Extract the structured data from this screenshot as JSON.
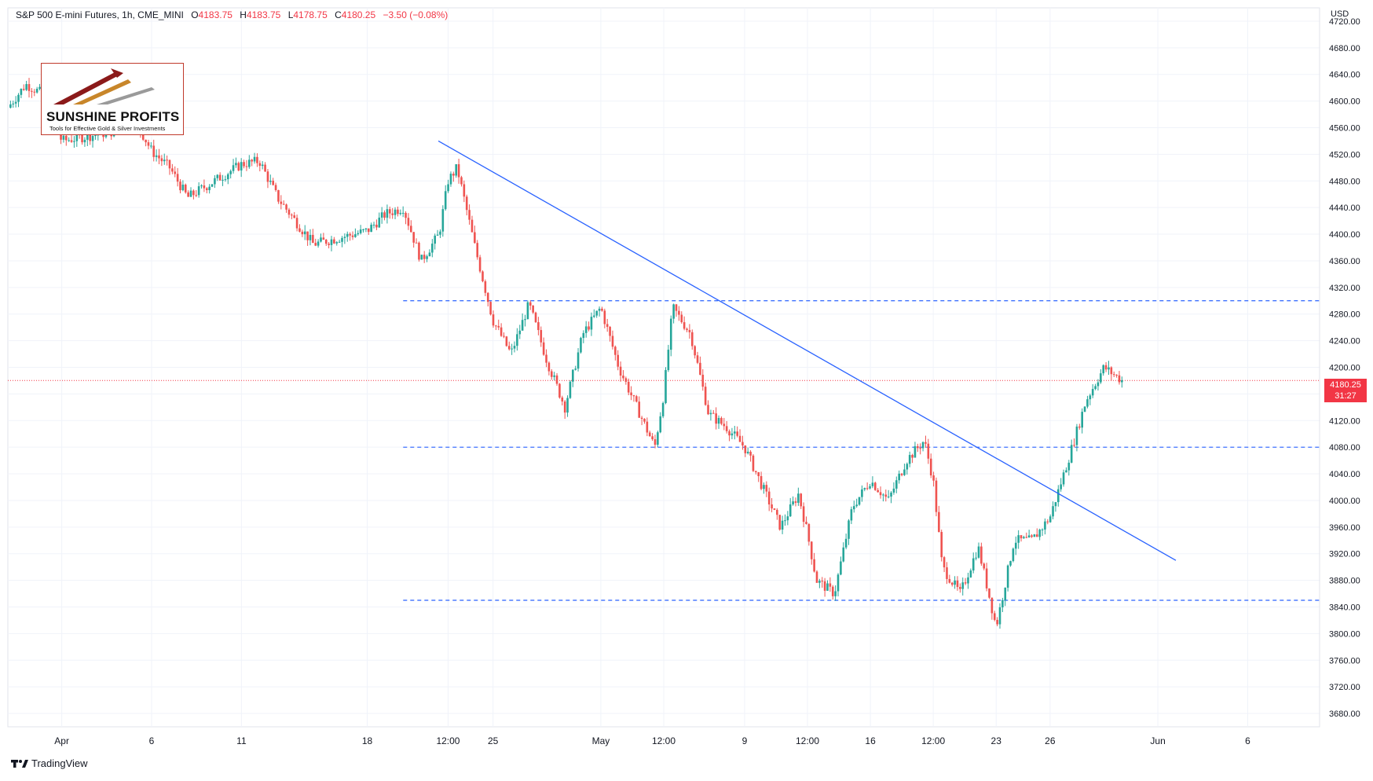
{
  "header": {
    "symbol": "S&P 500 E-mini Futures, 1h, CME_MINI",
    "open_label": "O",
    "open": "4183.75",
    "high_label": "H",
    "high": "4183.75",
    "low_label": "L",
    "low": "4178.75",
    "close_label": "C",
    "close": "4180.25",
    "change": "−3.50 (−0.08%)"
  },
  "currency": "USD",
  "last_price": {
    "value": "4180.25",
    "countdown": "31:27"
  },
  "logo": {
    "name": "SUNSHINE PROFITS",
    "tagline": "Tools for Effective Gold & Silver Investments"
  },
  "branding": {
    "platform": "TradingView",
    "icon": "tradingview-logo-icon"
  },
  "colors": {
    "up": "#26a69a",
    "down": "#ef5350",
    "trendline": "#2962ff",
    "last_price_line": "#f23645",
    "logo_border": "#c0392b"
  },
  "chart_data": {
    "type": "candlestick",
    "title": "S&P 500 E-mini Futures, 1h, CME_MINI",
    "y_unit": "USD",
    "ylim": [
      3660,
      4740
    ],
    "y_ticks": [
      4720,
      4680,
      4640,
      4600,
      4560,
      4520,
      4480,
      4440,
      4400,
      4360,
      4320,
      4280,
      4240,
      4200,
      4160,
      4120,
      4080,
      4040,
      4000,
      3960,
      3920,
      3880,
      3840,
      3800,
      3760,
      3720,
      3680
    ],
    "y_tick_labels": [
      "4720.00",
      "4680.00",
      "4640.00",
      "4600.00",
      "4560.00",
      "4520.00",
      "4480.00",
      "4440.00",
      "4400.00",
      "4360.00",
      "4320.00",
      "4280.00",
      "4240.00",
      "4200.00",
      "4160.00",
      "4120.00",
      "4080.00",
      "4040.00",
      "4000.00",
      "3960.00",
      "3920.00",
      "3880.00",
      "3840.00",
      "3800.00",
      "3760.00",
      "3720.00",
      "3680.00"
    ],
    "x_tick_labels": [
      "Apr",
      "6",
      "11",
      "18",
      "12:00",
      "25",
      "May",
      "12:00",
      "9",
      "12:00",
      "16",
      "12:00",
      "23",
      "26",
      "Jun",
      "6"
    ],
    "x_tick_dates": [
      "2022-04-01",
      "2022-04-06",
      "2022-04-11",
      "2022-04-18",
      "2022-04-22 12:00",
      "2022-04-25",
      "2022-05-01",
      "2022-05-04 12:00",
      "2022-05-09",
      "2022-05-12 12:00",
      "2022-05-16",
      "2022-05-19 12:00",
      "2022-05-23",
      "2022-05-26",
      "2022-06-01",
      "2022-06-06"
    ],
    "x_range": [
      "2022-03-29",
      "2022-06-10"
    ],
    "price_path": [
      [
        "2022-03-29",
        4590
      ],
      [
        "2022-03-30",
        4625
      ],
      [
        "2022-03-31",
        4610
      ],
      [
        "2022-04-01",
        4540
      ],
      [
        "2022-04-04",
        4555
      ],
      [
        "2022-04-05",
        4575
      ],
      [
        "2022-04-06",
        4525
      ],
      [
        "2022-04-07",
        4500
      ],
      [
        "2022-04-08",
        4455
      ],
      [
        "2022-04-11",
        4505
      ],
      [
        "2022-04-12",
        4510
      ],
      [
        "2022-04-13",
        4455
      ],
      [
        "2022-04-14",
        4420
      ],
      [
        "2022-04-15",
        4385
      ],
      [
        "2022-04-18",
        4405
      ],
      [
        "2022-04-19",
        4430
      ],
      [
        "2022-04-20",
        4440
      ],
      [
        "2022-04-21",
        4360
      ],
      [
        "2022-04-22",
        4400
      ],
      [
        "2022-04-22 12:00",
        4480
      ],
      [
        "2022-04-23",
        4500
      ],
      [
        "2022-04-24",
        4380
      ],
      [
        "2022-04-25",
        4270
      ],
      [
        "2022-04-26",
        4220
      ],
      [
        "2022-04-27",
        4295
      ],
      [
        "2022-04-28",
        4210
      ],
      [
        "2022-04-29",
        4140
      ],
      [
        "2022-04-30",
        4250
      ],
      [
        "2022-05-01",
        4290
      ],
      [
        "2022-05-02",
        4200
      ],
      [
        "2022-05-03",
        4140
      ],
      [
        "2022-05-04",
        4080
      ],
      [
        "2022-05-04 12:00",
        4160
      ],
      [
        "2022-05-05",
        4290
      ],
      [
        "2022-05-06",
        4250
      ],
      [
        "2022-05-07",
        4130
      ],
      [
        "2022-05-08",
        4110
      ],
      [
        "2022-05-09",
        4080
      ],
      [
        "2022-05-10",
        4020
      ],
      [
        "2022-05-11",
        3960
      ],
      [
        "2022-05-12",
        4010
      ],
      [
        "2022-05-12 12:00",
        3950
      ],
      [
        "2022-05-13",
        3880
      ],
      [
        "2022-05-14",
        3860
      ],
      [
        "2022-05-15",
        3990
      ],
      [
        "2022-05-16",
        4030
      ],
      [
        "2022-05-17",
        4000
      ],
      [
        "2022-05-18",
        4060
      ],
      [
        "2022-05-19",
        4090
      ],
      [
        "2022-05-19 12:00",
        4030
      ],
      [
        "2022-05-20",
        3900
      ],
      [
        "2022-05-21",
        3860
      ],
      [
        "2022-05-22",
        3930
      ],
      [
        "2022-05-23",
        3810
      ],
      [
        "2022-05-24",
        3940
      ],
      [
        "2022-05-25",
        3940
      ],
      [
        "2022-05-26",
        3975
      ],
      [
        "2022-05-27",
        4060
      ],
      [
        "2022-05-28",
        4150
      ],
      [
        "2022-05-29",
        4200
      ],
      [
        "2022-05-30",
        4180.25
      ]
    ],
    "horizontal_levels": [
      4300,
      4080,
      3850
    ],
    "trendline": {
      "from": [
        "2022-04-21 23:00",
        4540
      ],
      "to": [
        "2022-06-02",
        3910
      ]
    },
    "last_price": 4180.25,
    "grid": true
  }
}
